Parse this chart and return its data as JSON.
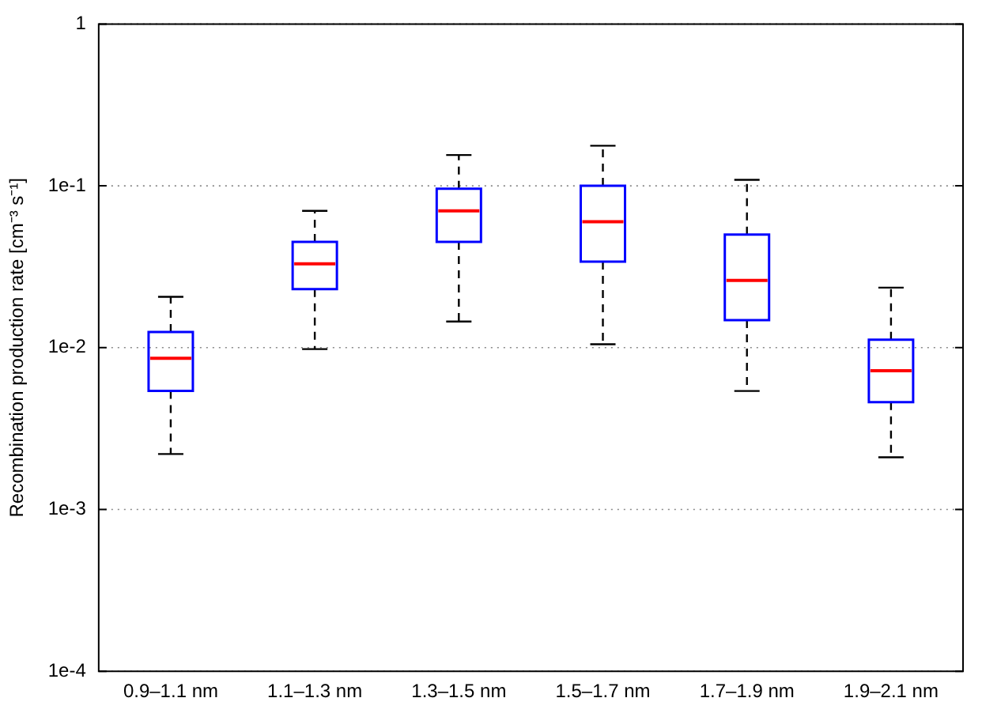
{
  "chart_data": {
    "type": "box",
    "ylabel": "Recombination production rate [cm⁻³ s⁻¹]",
    "categories": [
      "0.9–1.1 nm",
      "1.1–1.3 nm",
      "1.3–1.5 nm",
      "1.5–1.7 nm",
      "1.7–1.9 nm",
      "1.9–2.1 nm"
    ],
    "series": [
      {
        "color": "#0000ff",
        "boxes": [
          {
            "low": 0.0022,
            "q1": 0.0054,
            "median": 0.0086,
            "q3": 0.0125,
            "high": 0.0206
          },
          {
            "low": 0.0098,
            "q1": 0.023,
            "median": 0.033,
            "q3": 0.045,
            "high": 0.07
          },
          {
            "low": 0.0145,
            "q1": 0.045,
            "median": 0.07,
            "q3": 0.096,
            "high": 0.155
          },
          {
            "low": 0.0105,
            "q1": 0.034,
            "median": 0.06,
            "q3": 0.1,
            "high": 0.177
          },
          {
            "low": 0.0054,
            "q1": 0.0148,
            "median": 0.026,
            "q3": 0.05,
            "high": 0.109
          },
          {
            "low": 0.0021,
            "q1": 0.0046,
            "median": 0.0072,
            "q3": 0.0112,
            "high": 0.0235
          }
        ]
      }
    ],
    "log": "y",
    "ylim": [
      0.0001,
      1
    ],
    "yticks": [
      {
        "value": 0.0001,
        "label": "1e-4"
      },
      {
        "value": 0.001,
        "label": "1e-3"
      },
      {
        "value": 0.01,
        "label": "1e-2"
      },
      {
        "value": 0.1,
        "label": "1e-1"
      },
      1
    ],
    "grid": "y"
  }
}
